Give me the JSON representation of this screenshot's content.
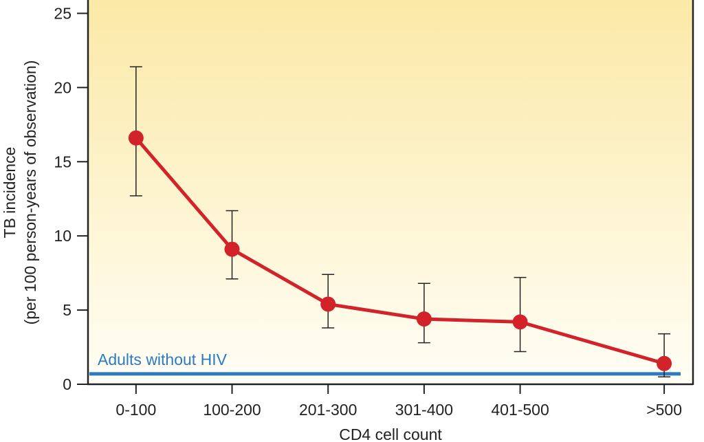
{
  "chart_data": {
    "type": "line",
    "title": "",
    "xlabel": "CD4 cell count",
    "ylabel": "TB incidence",
    "ylabel_line2": "(per 100 person-years of observation)",
    "categories": [
      "0-100",
      "100-200",
      "201-300",
      "301-400",
      "401-500",
      ">500"
    ],
    "category_positions": [
      50,
      150,
      250,
      350,
      450,
      600
    ],
    "x_range": [
      0,
      630
    ],
    "ylim": [
      0,
      25
    ],
    "yticks": [
      0,
      5,
      10,
      15,
      20,
      25
    ],
    "grid": false,
    "series": [
      {
        "values": [
          16.6,
          9.1,
          5.4,
          4.4,
          4.2,
          1.4
        ],
        "error_low": [
          12.7,
          7.1,
          3.8,
          2.8,
          2.2,
          0.5
        ],
        "error_high": [
          21.4,
          11.7,
          7.4,
          6.8,
          7.2,
          3.4
        ],
        "color": "#d2232a"
      }
    ],
    "reference_line": {
      "label": "Adults without HIV",
      "value": 0.7,
      "color": "#2b7bc0"
    },
    "background_gradient": [
      "#fbe9a6",
      "#fffef6"
    ]
  }
}
